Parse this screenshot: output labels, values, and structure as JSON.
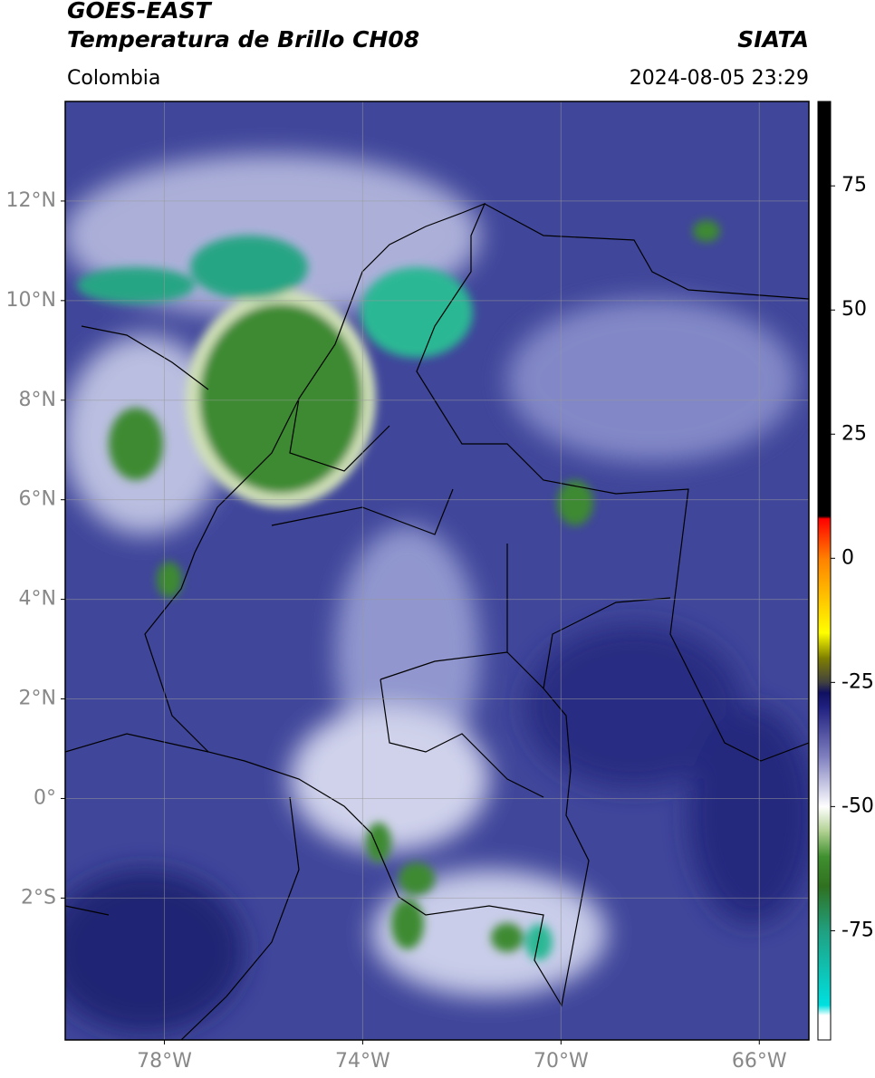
{
  "header": {
    "title": "GOES-EAST",
    "subtitle": "Temperatura de Brillo CH08",
    "source": "SIATA",
    "region": "Colombia",
    "datetime": "2024-08-05 23:29"
  },
  "map": {
    "lonlim": [
      -80,
      -65
    ],
    "latlim": [
      -4.85,
      14
    ],
    "lon_ticks": [
      {
        "value": -78,
        "label": "78°W"
      },
      {
        "value": -74,
        "label": "74°W"
      },
      {
        "value": -70,
        "label": "70°W"
      },
      {
        "value": -66,
        "label": "66°W"
      }
    ],
    "lat_ticks": [
      {
        "value": 12,
        "label": "12°N"
      },
      {
        "value": 10,
        "label": "10°N"
      },
      {
        "value": 8,
        "label": "8°N"
      },
      {
        "value": 6,
        "label": "6°N"
      },
      {
        "value": 4,
        "label": "4°N"
      },
      {
        "value": 2,
        "label": "2°N"
      },
      {
        "value": 0,
        "label": "0°"
      },
      {
        "value": -2,
        "label": "2°S"
      }
    ]
  },
  "colorbar": {
    "lim": [
      -97,
      92
    ],
    "ticks": [
      75,
      50,
      25,
      0,
      -25,
      -50,
      -75
    ],
    "stops": [
      {
        "value": 92,
        "color": "#000000"
      },
      {
        "value": 8.5,
        "color": "#000000"
      },
      {
        "value": 8,
        "color": "#ff0000"
      },
      {
        "value": 0,
        "color": "#ff8000"
      },
      {
        "value": -15,
        "color": "#ffff00"
      },
      {
        "value": -20,
        "color": "#808000"
      },
      {
        "value": -25,
        "color": "#404040"
      },
      {
        "value": -27,
        "color": "#101060"
      },
      {
        "value": -30,
        "color": "#202080"
      },
      {
        "value": -40,
        "color": "#8080c0"
      },
      {
        "value": -50,
        "color": "#ffffff"
      },
      {
        "value": -55,
        "color": "#b0d090"
      },
      {
        "value": -60,
        "color": "#409030"
      },
      {
        "value": -66,
        "color": "#307020"
      },
      {
        "value": -75,
        "color": "#20a080"
      },
      {
        "value": -90,
        "color": "#00e0e0"
      },
      {
        "value": -92,
        "color": "#ffffff"
      },
      {
        "value": -97,
        "color": "#ffffff"
      }
    ]
  }
}
